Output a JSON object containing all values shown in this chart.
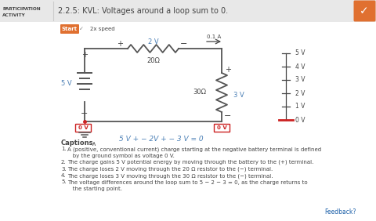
{
  "title": "2.2.5: KVL: Voltages around a loop sum to 0.",
  "header_bg": "#e8e8e8",
  "white_bg": "#ffffff",
  "orange": "#e07030",
  "blue_text": "#4a7fb5",
  "dark_gray": "#444444",
  "mid_gray": "#888888",
  "light_gray": "#cccccc",
  "circuit_color": "#555555",
  "red_box_color": "#cc2222",
  "scale_labels": [
    "5 V",
    "4 V",
    "3 V",
    "2 V",
    "1 V",
    "0 V"
  ],
  "start_button": "Start",
  "speed_text": "2x speed",
  "feedback_text": "Feedback?",
  "kvl_eq": "5 V + − 2V + − 3 V = 0",
  "cap1a": "A (positive, conventional current) charge starting at the negative battery terminal is defined",
  "cap1b": "   by the ground symbol as voltage 0 V.",
  "cap2": "The charge gains 5 V potential energy by moving through the battery to the (+) terminal.",
  "cap3": "The charge loses 2 V moving through the 20 Ω resistor to the (−) terminal.",
  "cap4": "The charge loses 3 V moving through the 30 Ω resistor to the (−) terminal.",
  "cap5a": "The voltage differences around the loop sum to 5 − 2 − 3 = 0, as the charge returns to",
  "cap5b": "   the starting point."
}
